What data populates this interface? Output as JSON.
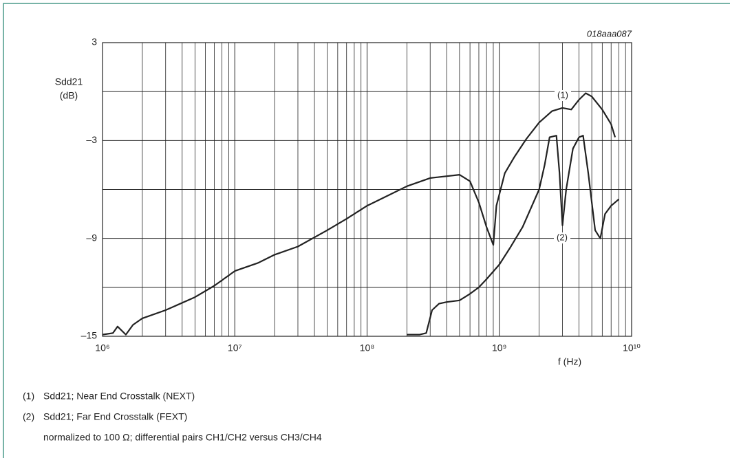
{
  "chart_data": {
    "type": "line",
    "code": "018aaa087",
    "ylabel": [
      "Sdd21",
      "(dB)"
    ],
    "xlabel": "f (Hz)",
    "xscale": "log",
    "grid": true,
    "xlim": [
      1000000,
      10000000000
    ],
    "ylim": [
      -15,
      3
    ],
    "xticks": [
      {
        "value": 1000000,
        "label": "10⁶"
      },
      {
        "value": 2000000,
        "label": null
      },
      {
        "value": 3000000,
        "label": null
      },
      {
        "value": 4000000,
        "label": null
      },
      {
        "value": 5000000,
        "label": null
      },
      {
        "value": 6000000,
        "label": null
      },
      {
        "value": 7000000,
        "label": null
      },
      {
        "value": 8000000,
        "label": null
      },
      {
        "value": 9000000,
        "label": null
      },
      {
        "value": 10000000,
        "label": "10⁷"
      },
      {
        "value": 20000000,
        "label": null
      },
      {
        "value": 30000000,
        "label": null
      },
      {
        "value": 40000000,
        "label": null
      },
      {
        "value": 50000000,
        "label": null
      },
      {
        "value": 60000000,
        "label": null
      },
      {
        "value": 70000000,
        "label": null
      },
      {
        "value": 80000000,
        "label": null
      },
      {
        "value": 90000000,
        "label": null
      },
      {
        "value": 100000000,
        "label": "10⁸"
      },
      {
        "value": 200000000,
        "label": null
      },
      {
        "value": 300000000,
        "label": null
      },
      {
        "value": 400000000,
        "label": null
      },
      {
        "value": 500000000,
        "label": null
      },
      {
        "value": 600000000,
        "label": null
      },
      {
        "value": 700000000,
        "label": null
      },
      {
        "value": 800000000,
        "label": null
      },
      {
        "value": 900000000,
        "label": null
      },
      {
        "value": 1000000000,
        "label": "10⁹"
      },
      {
        "value": 2000000000,
        "label": null
      },
      {
        "value": 3000000000,
        "label": null
      },
      {
        "value": 4000000000,
        "label": null
      },
      {
        "value": 5000000000,
        "label": null
      },
      {
        "value": 6000000000,
        "label": null
      },
      {
        "value": 7000000000,
        "label": null
      },
      {
        "value": 8000000000,
        "label": null
      },
      {
        "value": 9000000000,
        "label": null
      },
      {
        "value": 10000000000,
        "label": "10¹⁰"
      }
    ],
    "yticks": [
      3,
      {
        "value": 0,
        "label": null
      },
      {
        "value": -3,
        "label": "–3"
      },
      {
        "value": -6,
        "label": null
      },
      {
        "value": -9,
        "label": "–9"
      },
      {
        "value": -12,
        "label": null
      },
      {
        "value": -15,
        "label": "–15"
      }
    ],
    "series": [
      {
        "name": "(1)",
        "color": "#222222",
        "x": [
          1000000,
          1200000,
          1300000,
          1500000,
          1700000,
          2000000,
          3000000,
          5000000,
          7000000,
          10000000,
          15000000,
          20000000,
          30000000,
          50000000,
          70000000,
          100000000,
          150000000,
          200000000,
          300000000,
          500000000,
          600000000,
          700000000,
          800000000,
          900000000,
          950000000,
          1100000000,
          1300000000,
          1600000000,
          2000000000,
          2500000000,
          3000000000,
          3500000000,
          4000000000,
          4500000000,
          5000000000,
          6000000000,
          7000000000,
          7500000000
        ],
        "values": [
          -14.9,
          -14.8,
          -14.4,
          -14.9,
          -14.3,
          -13.9,
          -13.4,
          -12.6,
          -11.9,
          -11.0,
          -10.5,
          -10.0,
          -9.5,
          -8.5,
          -7.8,
          -7.0,
          -6.3,
          -5.8,
          -5.3,
          -5.1,
          -5.5,
          -6.8,
          -8.3,
          -9.4,
          -7.0,
          -5.0,
          -4.0,
          -2.9,
          -1.9,
          -1.2,
          -1.0,
          -1.1,
          -0.5,
          -0.1,
          -0.3,
          -1.1,
          -2.0,
          -2.8
        ]
      },
      {
        "name": "(2)",
        "color": "#222222",
        "x": [
          200000000,
          250000000,
          280000000,
          310000000,
          350000000,
          400000000,
          500000000,
          600000000,
          700000000,
          800000000,
          1000000000,
          1200000000,
          1500000000,
          2000000000,
          2200000000,
          2400000000,
          2700000000,
          2850000000,
          3000000000,
          3200000000,
          3600000000,
          4000000000,
          4300000000,
          4700000000,
          5300000000,
          5800000000,
          6300000000,
          7000000000,
          8000000000
        ],
        "values": [
          -14.9,
          -14.9,
          -14.8,
          -13.4,
          -13.0,
          -12.9,
          -12.8,
          -12.4,
          -12.0,
          -11.5,
          -10.6,
          -9.6,
          -8.3,
          -6.0,
          -4.5,
          -2.8,
          -2.7,
          -5.0,
          -8.2,
          -6.0,
          -3.5,
          -2.8,
          -2.7,
          -5.0,
          -8.5,
          -9.0,
          -7.5,
          -7.0,
          -6.6
        ]
      }
    ],
    "notes": [
      {
        "num": "(1)",
        "text": "Sdd21; Near End Crosstalk (NEXT)"
      },
      {
        "num": "(2)",
        "text": "Sdd21; Far End Crosstalk (FEXT)"
      },
      {
        "num": null,
        "text": "normalized to 100 Ω; differential pairs CH1/CH2 versus CH3/CH4"
      }
    ]
  }
}
